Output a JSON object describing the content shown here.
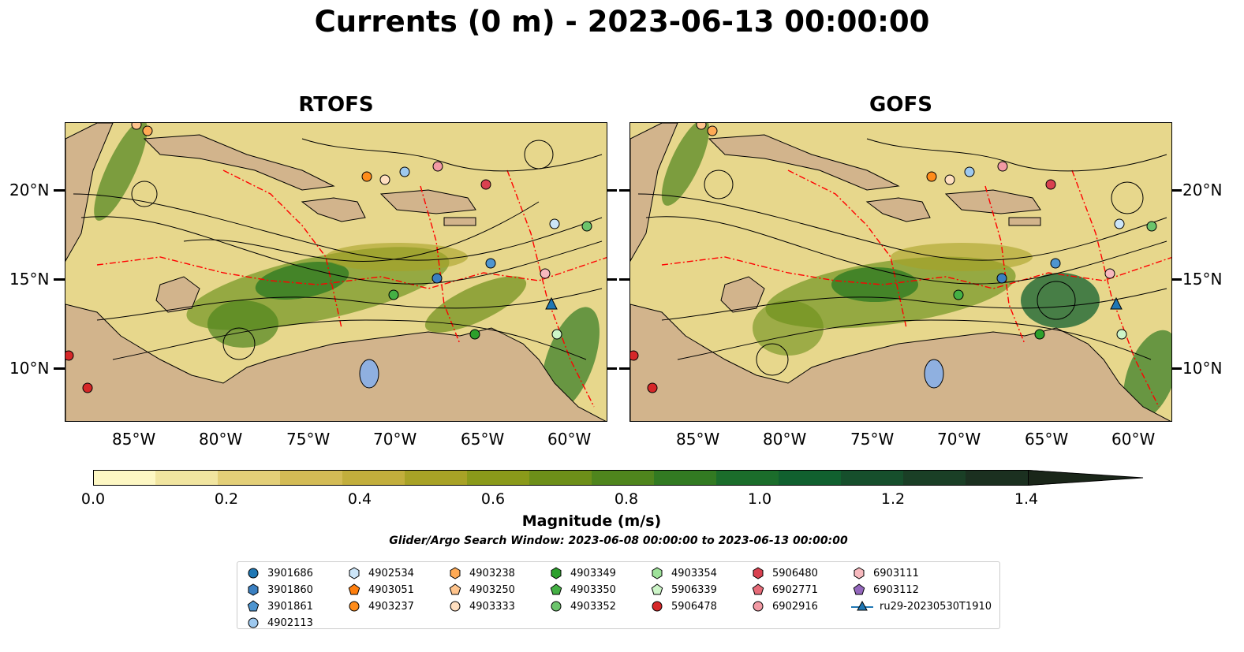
{
  "title": "Currents (0 m) - 2023-06-13 00:00:00",
  "panels": [
    {
      "title": "RTOFS"
    },
    {
      "title": "GOFS"
    }
  ],
  "lon_labels": [
    "85°W",
    "80°W",
    "75°W",
    "70°W",
    "65°W",
    "60°W"
  ],
  "lat_labels": [
    "20°N",
    "15°N",
    "10°N"
  ],
  "colorbar": {
    "label": "Magnitude (m/s)",
    "ticks": [
      "0.0",
      "0.2",
      "0.4",
      "0.6",
      "0.8",
      "1.0",
      "1.2",
      "1.4"
    ],
    "range": [
      0,
      1.5
    ],
    "extend": "max",
    "colors": [
      "#fdf7c3",
      "#f1e5a0",
      "#e3cf78",
      "#d3bb55",
      "#c2ae3c",
      "#a8a226",
      "#8a9a1a",
      "#6d8f19",
      "#4f851d",
      "#327a22",
      "#1b6d2b",
      "#11602f",
      "#164f2c",
      "#1a3f26",
      "#1b3020",
      "#1a2619"
    ]
  },
  "search_window": "Glider/Argo Search Window: 2023-06-08 00:00:00 to 2023-06-13 00:00:00",
  "legend": [
    {
      "label": "3901686",
      "marker": "circle",
      "color": "#1f77b4"
    },
    {
      "label": "3901860",
      "marker": "hexagon",
      "color": "#3a7fc1"
    },
    {
      "label": "3901861",
      "marker": "pentagon",
      "color": "#4e95d0"
    },
    {
      "label": "4902113",
      "marker": "circle",
      "color": "#9ec9ef"
    },
    {
      "label": "4902534",
      "marker": "hexagon",
      "color": "#cce5f8"
    },
    {
      "label": "4903051",
      "marker": "pentagon",
      "color": "#ff7f0e"
    },
    {
      "label": "4903237",
      "marker": "circle",
      "color": "#ff8c1a"
    },
    {
      "label": "4903238",
      "marker": "hexagon",
      "color": "#ffaa55"
    },
    {
      "label": "4903250",
      "marker": "pentagon",
      "color": "#ffc48c"
    },
    {
      "label": "4903333",
      "marker": "circle",
      "color": "#ffdfc0"
    },
    {
      "label": "4903349",
      "marker": "hexagon",
      "color": "#2ca02c"
    },
    {
      "label": "4903350",
      "marker": "pentagon",
      "color": "#44b044"
    },
    {
      "label": "4903352",
      "marker": "circle",
      "color": "#6cc46c"
    },
    {
      "label": "4903354",
      "marker": "hexagon",
      "color": "#9ee29a"
    },
    {
      "label": "5906339",
      "marker": "pentagon",
      "color": "#cdf5c8"
    },
    {
      "label": "5906478",
      "marker": "circle",
      "color": "#d62728"
    },
    {
      "label": "5906480",
      "marker": "hexagon",
      "color": "#d94150"
    },
    {
      "label": "6902771",
      "marker": "pentagon",
      "color": "#e66b78"
    },
    {
      "label": "6902916",
      "marker": "circle",
      "color": "#f29aa4"
    },
    {
      "label": "6903111",
      "marker": "hexagon",
      "color": "#f7b9be"
    },
    {
      "label": "6903112",
      "marker": "pentagon",
      "color": "#9467bd"
    },
    {
      "label": "ru29-20230530T1910",
      "marker": "triangle-line",
      "color": "#1f77b4"
    }
  ]
}
